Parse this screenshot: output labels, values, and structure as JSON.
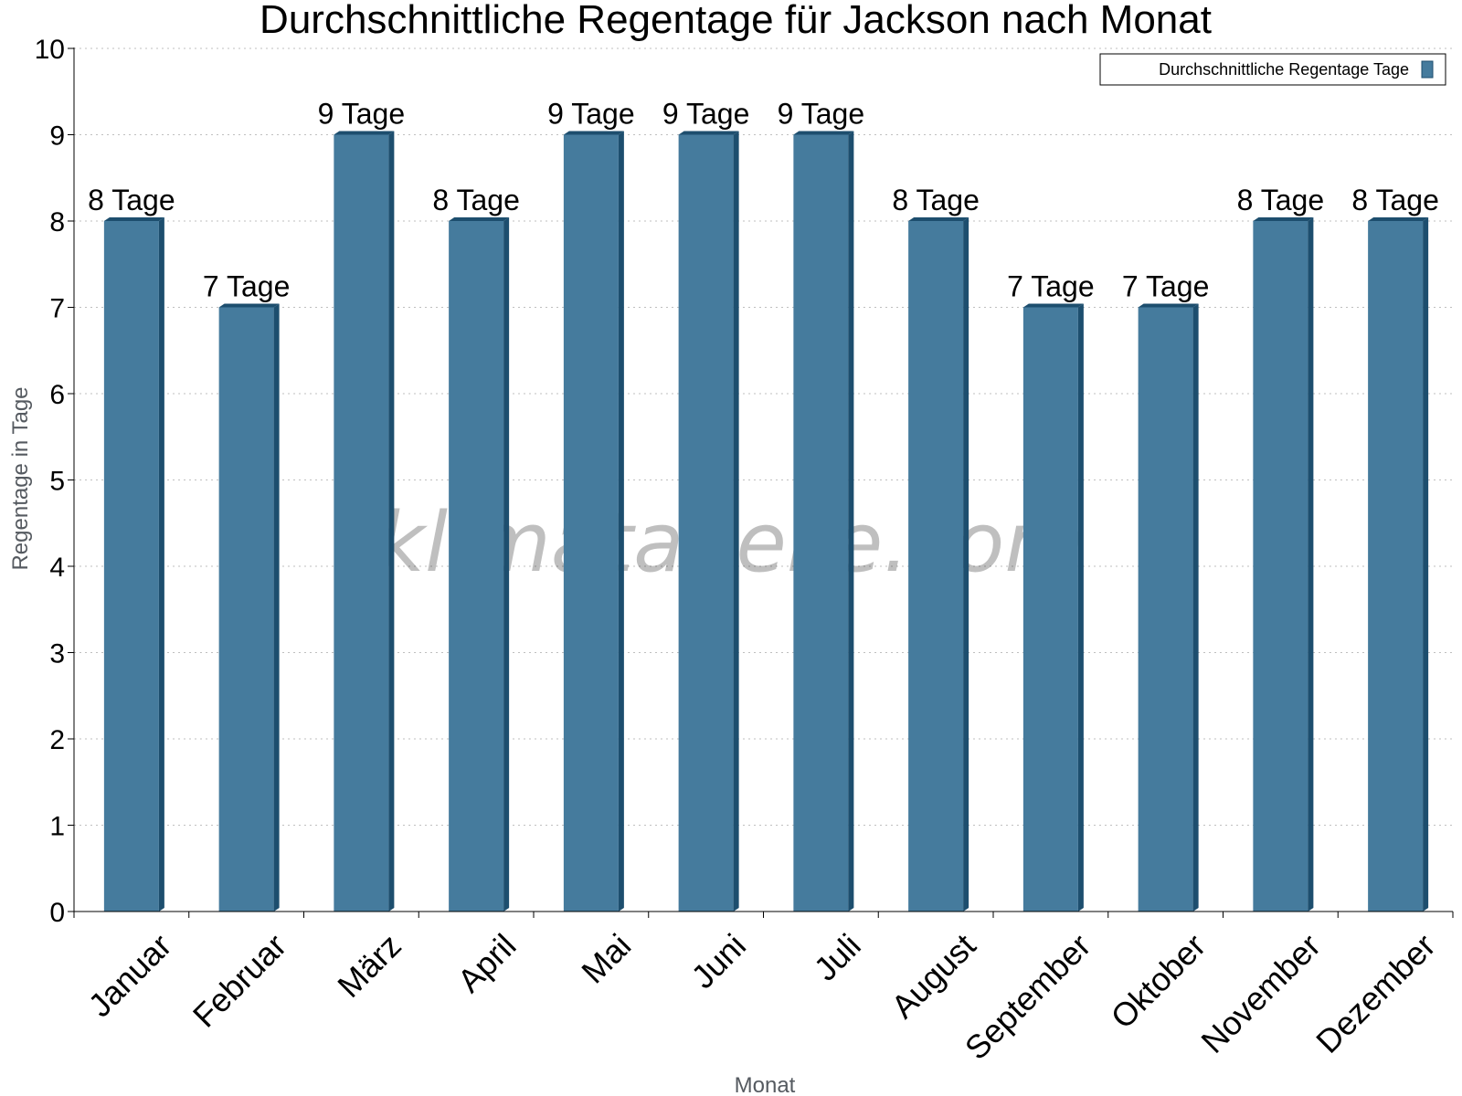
{
  "chart_data": {
    "type": "bar",
    "title": "Durchschnittliche Regentage für Jackson nach Monat",
    "xlabel": "Monat",
    "ylabel": "Regentage in Tage",
    "ylim": [
      0,
      10
    ],
    "yticks": [
      "0",
      "1",
      "2",
      "3",
      "4",
      "5",
      "6",
      "7",
      "8",
      "9",
      "10"
    ],
    "grid": true,
    "legend_position": "top-right",
    "categories": [
      "Januar",
      "Februar",
      "März",
      "April",
      "Mai",
      "Juni",
      "Juli",
      "August",
      "September",
      "Oktober",
      "November",
      "Dezember"
    ],
    "series": [
      {
        "name": "Durchschnittliche Regentage Tage",
        "values": [
          8,
          7,
          9,
          8,
          9,
          9,
          9,
          8,
          7,
          7,
          8,
          8
        ],
        "labels": [
          "8 Tage",
          "7 Tage",
          "9 Tage",
          "8 Tage",
          "9 Tage",
          "9 Tage",
          "9 Tage",
          "8 Tage",
          "7 Tage",
          "7 Tage",
          "8 Tage",
          "8 Tage"
        ],
        "color": "#457b9d",
        "side_color": "#1d4e6e"
      }
    ],
    "watermark": "klimatabelle.com"
  }
}
